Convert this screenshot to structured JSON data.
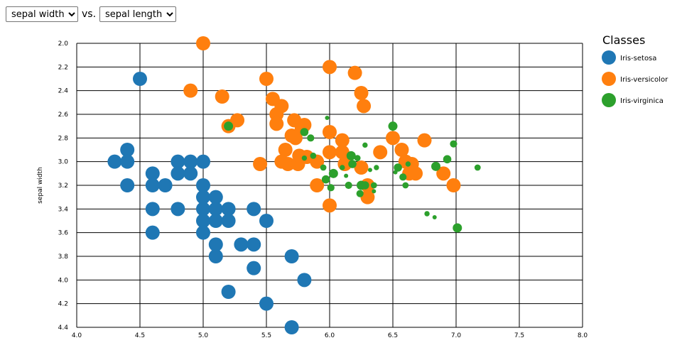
{
  "controls": {
    "y_select": {
      "value": "sepal width",
      "options": [
        "sepal width"
      ]
    },
    "separator": "vs.",
    "x_select": {
      "value": "sepal length",
      "options": [
        "sepal length"
      ]
    }
  },
  "chart_data": {
    "type": "scatter",
    "title": "",
    "xlabel": "",
    "ylabel": "sepal width",
    "xlim": [
      4.0,
      8.0
    ],
    "ylim": [
      2.0,
      4.4
    ],
    "y_inverted": true,
    "grid": true,
    "x_ticks": [
      "4.0",
      "4.5",
      "5.0",
      "5.5",
      "6.0",
      "6.5",
      "7.0",
      "7.5",
      "8.0"
    ],
    "y_ticks": [
      "2.0",
      "2.2",
      "2.4",
      "2.6",
      "2.8",
      "3.0",
      "3.2",
      "3.4",
      "3.6",
      "3.8",
      "4.0",
      "4.2",
      "4.4"
    ],
    "legend": {
      "title": "Classes",
      "position": "right"
    },
    "series": [
      {
        "name": "Iris-setosa",
        "color": "#1f77b4",
        "points": [
          [
            4.5,
            2.3
          ],
          [
            4.3,
            3.0
          ],
          [
            4.4,
            2.9
          ],
          [
            4.4,
            3.0
          ],
          [
            4.4,
            3.2
          ],
          [
            4.6,
            3.1
          ],
          [
            4.6,
            3.2
          ],
          [
            4.7,
            3.2
          ],
          [
            4.6,
            3.4
          ],
          [
            4.6,
            3.6
          ],
          [
            4.8,
            3.0
          ],
          [
            4.8,
            3.1
          ],
          [
            4.9,
            3.0
          ],
          [
            4.9,
            3.1
          ],
          [
            4.8,
            3.4
          ],
          [
            5.0,
            3.0
          ],
          [
            5.0,
            3.2
          ],
          [
            5.0,
            3.3
          ],
          [
            5.0,
            3.4
          ],
          [
            5.0,
            3.5
          ],
          [
            5.0,
            3.6
          ],
          [
            5.1,
            3.3
          ],
          [
            5.1,
            3.4
          ],
          [
            5.1,
            3.5
          ],
          [
            5.1,
            3.7
          ],
          [
            5.1,
            3.8
          ],
          [
            5.2,
            3.4
          ],
          [
            5.2,
            3.5
          ],
          [
            5.2,
            4.1
          ],
          [
            5.3,
            3.7
          ],
          [
            5.4,
            3.4
          ],
          [
            5.4,
            3.7
          ],
          [
            5.4,
            3.9
          ],
          [
            5.5,
            3.5
          ],
          [
            5.5,
            4.2
          ],
          [
            5.7,
            3.8
          ],
          [
            5.8,
            4.0
          ],
          [
            5.7,
            4.4
          ]
        ]
      },
      {
        "name": "Iris-versicolor",
        "color": "#ff7f0e",
        "points": [
          [
            5.0,
            2.0
          ],
          [
            4.9,
            2.4
          ],
          [
            5.15,
            2.45
          ],
          [
            5.27,
            2.65
          ],
          [
            5.2,
            2.7
          ],
          [
            5.5,
            2.3
          ],
          [
            5.55,
            2.47
          ],
          [
            5.58,
            2.6
          ],
          [
            5.62,
            2.53
          ],
          [
            5.58,
            2.68
          ],
          [
            5.45,
            3.02
          ],
          [
            5.65,
            2.9
          ],
          [
            5.62,
            3.0
          ],
          [
            5.67,
            3.02
          ],
          [
            5.7,
            2.78
          ],
          [
            5.73,
            2.8
          ],
          [
            5.72,
            2.65
          ],
          [
            5.78,
            2.72
          ],
          [
            5.8,
            2.69
          ],
          [
            5.75,
            3.02
          ],
          [
            5.76,
            2.95
          ],
          [
            5.82,
            2.96
          ],
          [
            5.9,
            3.0
          ],
          [
            5.9,
            3.2
          ],
          [
            6.0,
            2.2
          ],
          [
            6.0,
            2.75
          ],
          [
            6.0,
            2.92
          ],
          [
            6.0,
            3.37
          ],
          [
            6.1,
            2.82
          ],
          [
            6.1,
            2.92
          ],
          [
            6.12,
            3.02
          ],
          [
            6.2,
            2.25
          ],
          [
            6.25,
            2.42
          ],
          [
            6.27,
            2.53
          ],
          [
            6.25,
            3.05
          ],
          [
            6.3,
            3.2
          ],
          [
            6.3,
            3.3
          ],
          [
            6.4,
            2.92
          ],
          [
            6.5,
            2.8
          ],
          [
            6.57,
            2.9
          ],
          [
            6.6,
            3.0
          ],
          [
            6.63,
            3.1
          ],
          [
            6.65,
            3.02
          ],
          [
            6.68,
            3.1
          ],
          [
            6.75,
            2.82
          ],
          [
            6.9,
            3.1
          ],
          [
            6.98,
            3.2
          ]
        ]
      },
      {
        "name": "Iris-virginica",
        "color": "#2ca02c",
        "points": [
          [
            5.2,
            2.7
          ],
          [
            5.8,
            2.75
          ],
          [
            5.85,
            2.8
          ],
          [
            5.87,
            2.95
          ],
          [
            5.8,
            2.97
          ],
          [
            5.98,
            2.63
          ],
          [
            6.03,
            3.1
          ],
          [
            5.97,
            3.15
          ],
          [
            6.01,
            3.22
          ],
          [
            5.95,
            3.05
          ],
          [
            6.1,
            3.05
          ],
          [
            6.13,
            3.12
          ],
          [
            6.17,
            2.95
          ],
          [
            6.18,
            3.02
          ],
          [
            6.15,
            3.2
          ],
          [
            6.22,
            2.97
          ],
          [
            6.28,
            2.86
          ],
          [
            6.32,
            3.07
          ],
          [
            6.25,
            3.2
          ],
          [
            6.28,
            3.2
          ],
          [
            6.24,
            3.27
          ],
          [
            6.35,
            3.2
          ],
          [
            6.37,
            3.05
          ],
          [
            6.35,
            3.25
          ],
          [
            6.5,
            2.7
          ],
          [
            6.54,
            3.05
          ],
          [
            6.58,
            3.13
          ],
          [
            6.6,
            3.2
          ],
          [
            6.62,
            3.02
          ],
          [
            6.52,
            3.09
          ],
          [
            6.84,
            3.04
          ],
          [
            6.93,
            2.98
          ],
          [
            6.98,
            2.85
          ],
          [
            7.17,
            3.05
          ],
          [
            6.77,
            3.44
          ],
          [
            6.83,
            3.47
          ],
          [
            7.01,
            3.56
          ]
        ]
      }
    ]
  }
}
